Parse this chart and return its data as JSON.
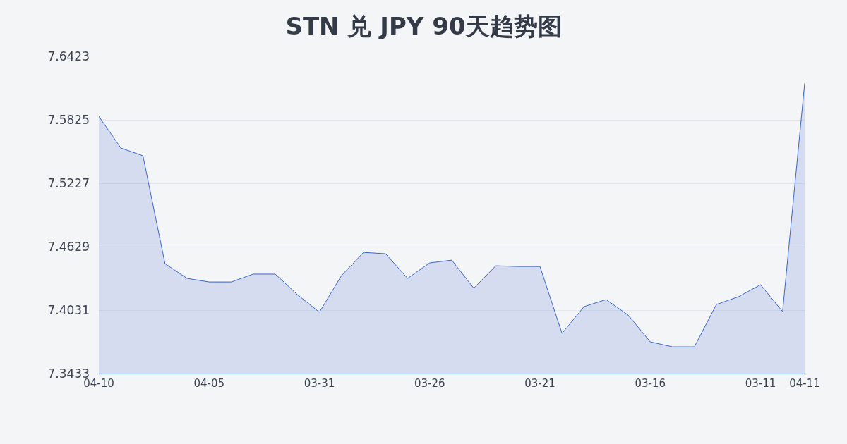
{
  "chart_data": {
    "type": "area",
    "title": "STN 兑 JPY 90天趋势图",
    "categories": [
      "04-10",
      null,
      null,
      null,
      null,
      "04-05",
      null,
      null,
      null,
      null,
      "03-31",
      null,
      null,
      null,
      null,
      "03-26",
      null,
      null,
      null,
      null,
      "03-21",
      null,
      null,
      null,
      null,
      "03-16",
      null,
      null,
      null,
      null,
      "03-11",
      null,
      "04-11"
    ],
    "series": [
      {
        "color": "#3a66cc",
        "values": [
          7.5858,
          7.5559,
          7.5486,
          7.4469,
          7.433,
          7.4296,
          7.4296,
          7.437,
          7.437,
          7.4177,
          7.4011,
          7.4356,
          7.4575,
          7.4562,
          7.433,
          7.4476,
          7.4502,
          7.4237,
          7.4449,
          7.4442,
          7.4442,
          7.3811,
          7.4064,
          7.413,
          7.3984,
          7.3732,
          7.3685,
          7.3685,
          7.4084,
          7.4157,
          7.427,
          7.4017,
          7.6169
        ]
      }
    ],
    "ylim": [
      7.3433,
      7.6423
    ],
    "yticks": [
      7.3433,
      7.4031,
      7.4629,
      7.5227,
      7.5825,
      7.6423
    ],
    "grid": "y"
  }
}
